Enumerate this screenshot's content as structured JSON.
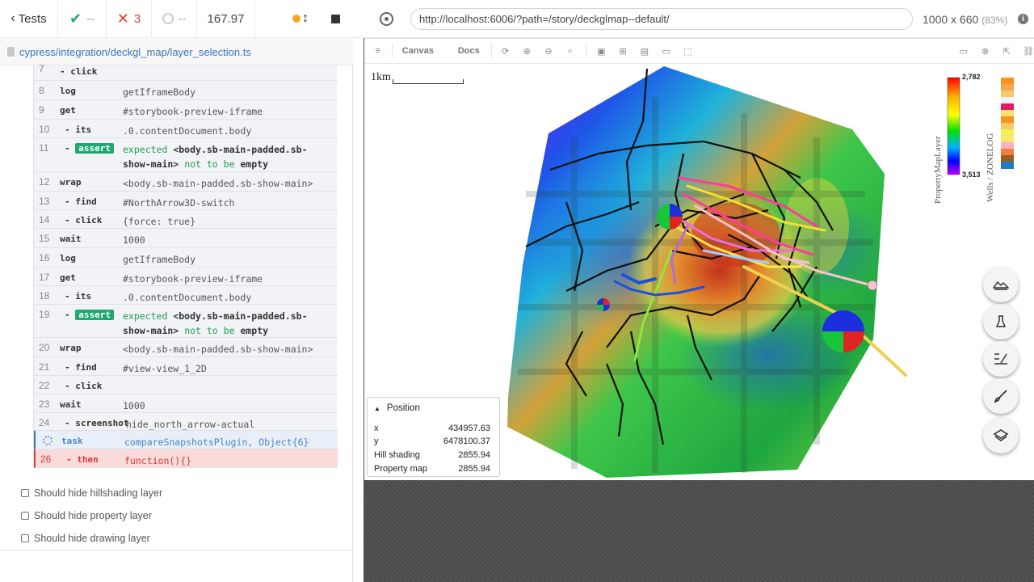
{
  "runner": {
    "back_label": "Tests",
    "passed": "--",
    "failed": "3",
    "pending": "--",
    "duration": "167.97",
    "spec_path": "cypress/integration/deckgl_map/layer_selection.ts"
  },
  "commands": [
    {
      "num": "7",
      "name": "- click",
      "msg": ""
    },
    {
      "num": "8",
      "name": "log",
      "msg": "getIframeBody"
    },
    {
      "num": "9",
      "name": "get",
      "msg": "#storybook-preview-iframe"
    },
    {
      "num": "10",
      "name": "- its",
      "msg": ".0.contentDocument.body"
    },
    {
      "num": "11",
      "name": "assert",
      "msg_a": "expected",
      "msg_b": "<body.sb-main-padded.sb-show-main>",
      "msg_c": "not to be",
      "msg_d": "empty"
    },
    {
      "num": "12",
      "name": "wrap",
      "msg": "<body.sb-main-padded.sb-show-main>"
    },
    {
      "num": "13",
      "name": "- find",
      "msg": "#NorthArrow3D-switch"
    },
    {
      "num": "14",
      "name": "- click",
      "msg": "{force: true}"
    },
    {
      "num": "15",
      "name": "wait",
      "msg": "1000"
    },
    {
      "num": "16",
      "name": "log",
      "msg": "getIframeBody"
    },
    {
      "num": "17",
      "name": "get",
      "msg": "#storybook-preview-iframe"
    },
    {
      "num": "18",
      "name": "- its",
      "msg": ".0.contentDocument.body"
    },
    {
      "num": "19",
      "name": "assert",
      "msg_a": "expected",
      "msg_b": "<body.sb-main-padded.sb-show-main>",
      "msg_c": "not to be",
      "msg_d": "empty"
    },
    {
      "num": "20",
      "name": "wrap",
      "msg": "<body.sb-main-padded.sb-show-main>"
    },
    {
      "num": "21",
      "name": "- find",
      "msg": "#view-view_1_2D"
    },
    {
      "num": "22",
      "name": "- click",
      "msg": ""
    },
    {
      "num": "23",
      "name": "wait",
      "msg": "1000"
    },
    {
      "num": "24",
      "name": "- screenshot",
      "msg": "hide_north_arrow-actual"
    },
    {
      "num": "",
      "name": "task",
      "msg": "compareSnapshotsPlugin, Object{6}"
    },
    {
      "num": "26",
      "name": "- then",
      "msg": "function(){}"
    }
  ],
  "tests": [
    "Should hide hillshading layer",
    "Should hide property layer",
    "Should hide drawing layer"
  ],
  "aut": {
    "url": "http://localhost:6006/?path=/story/deckglmap--default/",
    "viewport": "1000 x 660",
    "zoom": "(83%)"
  },
  "storybook": {
    "tab_canvas": "Canvas",
    "tab_docs": "Docs"
  },
  "map": {
    "scale_label": "1km",
    "legend1_title": "PropertyMapLayer",
    "legend1_max": "2,782",
    "legend1_min": "3,513",
    "legend2_title": "Wells / ZONELOG",
    "position": {
      "title": "Position",
      "rows": [
        {
          "label": "x",
          "value": "434957.63"
        },
        {
          "label": "y",
          "value": "6478100.37"
        },
        {
          "label": "Hill shading",
          "value": "2855.94"
        },
        {
          "label": "Property map",
          "value": "2855.94"
        }
      ]
    }
  },
  "colors": {
    "pass": "#1fa971",
    "fail": "#e03d3d",
    "link": "#3a76b8"
  }
}
